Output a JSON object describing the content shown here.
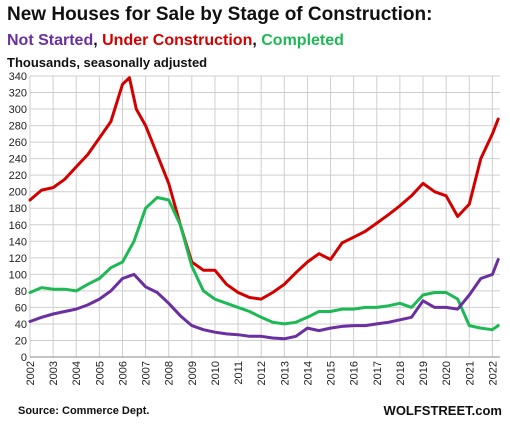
{
  "chart_data": {
    "type": "line",
    "title": "New Houses for Sale by Stage of Construction:",
    "legend_title": [
      {
        "text": "Not Started",
        "color": "#6a2fa0"
      },
      {
        "text": ", ",
        "color": "#111111"
      },
      {
        "text": "Under Construction",
        "color": "#d40000"
      },
      {
        "text": ", ",
        "color": "#111111"
      },
      {
        "text": "Completed",
        "color": "#1db954"
      }
    ],
    "units_label": "Thousands, seasonally adjusted",
    "ylim": [
      0,
      340
    ],
    "y_ticks": [
      0,
      20,
      40,
      60,
      80,
      100,
      120,
      140,
      160,
      180,
      200,
      220,
      240,
      260,
      280,
      300,
      320,
      340
    ],
    "xlim": [
      2002.0,
      2022.33
    ],
    "x_ticks": [
      "2002",
      "2003",
      "2004",
      "2005",
      "2006",
      "2007",
      "2008",
      "2009",
      "2010",
      "2011",
      "2012",
      "2013",
      "2014",
      "2015",
      "2016",
      "2017",
      "2018",
      "2019",
      "2020",
      "2021",
      "2022"
    ],
    "grid": true,
    "series": [
      {
        "name": "Under Construction",
        "color": "#d40000",
        "x": [
          2002.0,
          2002.5,
          2003.0,
          2003.5,
          2004.0,
          2004.5,
          2005.0,
          2005.5,
          2006.0,
          2006.3,
          2006.6,
          2007.0,
          2007.5,
          2008.0,
          2008.5,
          2009.0,
          2009.5,
          2010.0,
          2010.5,
          2011.0,
          2011.5,
          2012.0,
          2012.5,
          2013.0,
          2013.5,
          2014.0,
          2014.5,
          2015.0,
          2015.5,
          2016.0,
          2016.5,
          2017.0,
          2017.5,
          2018.0,
          2018.5,
          2019.0,
          2019.5,
          2020.0,
          2020.5,
          2021.0,
          2021.5,
          2022.0,
          2022.25
        ],
        "y": [
          190,
          202,
          205,
          215,
          230,
          245,
          265,
          285,
          330,
          338,
          300,
          280,
          245,
          210,
          160,
          115,
          105,
          105,
          88,
          78,
          72,
          70,
          78,
          88,
          102,
          115,
          125,
          118,
          138,
          145,
          152,
          162,
          172,
          183,
          195,
          210,
          200,
          195,
          170,
          185,
          240,
          270,
          288
        ]
      },
      {
        "name": "Completed",
        "color": "#1db954",
        "x": [
          2002.0,
          2002.5,
          2003.0,
          2003.5,
          2004.0,
          2004.5,
          2005.0,
          2005.5,
          2006.0,
          2006.5,
          2007.0,
          2007.5,
          2008.0,
          2008.5,
          2009.0,
          2009.5,
          2010.0,
          2010.5,
          2011.0,
          2011.5,
          2012.0,
          2012.5,
          2013.0,
          2013.5,
          2014.0,
          2014.5,
          2015.0,
          2015.5,
          2016.0,
          2016.5,
          2017.0,
          2017.5,
          2018.0,
          2018.5,
          2019.0,
          2019.5,
          2020.0,
          2020.5,
          2021.0,
          2021.5,
          2022.0,
          2022.25
        ],
        "y": [
          78,
          84,
          82,
          82,
          80,
          88,
          95,
          108,
          115,
          140,
          180,
          193,
          190,
          160,
          110,
          80,
          70,
          65,
          60,
          55,
          48,
          42,
          40,
          42,
          48,
          55,
          55,
          58,
          58,
          60,
          60,
          62,
          65,
          60,
          75,
          78,
          78,
          70,
          38,
          35,
          33,
          38
        ]
      },
      {
        "name": "Not Started",
        "color": "#6a2fa0",
        "x": [
          2002.0,
          2002.5,
          2003.0,
          2003.5,
          2004.0,
          2004.5,
          2005.0,
          2005.5,
          2006.0,
          2006.5,
          2007.0,
          2007.5,
          2008.0,
          2008.5,
          2009.0,
          2009.5,
          2010.0,
          2010.5,
          2011.0,
          2011.5,
          2012.0,
          2012.5,
          2013.0,
          2013.5,
          2014.0,
          2014.5,
          2015.0,
          2015.5,
          2016.0,
          2016.5,
          2017.0,
          2017.5,
          2018.0,
          2018.5,
          2019.0,
          2019.5,
          2020.0,
          2020.5,
          2021.0,
          2021.5,
          2022.0,
          2022.25
        ],
        "y": [
          43,
          48,
          52,
          55,
          58,
          63,
          70,
          80,
          95,
          100,
          85,
          78,
          65,
          50,
          38,
          33,
          30,
          28,
          27,
          25,
          25,
          23,
          22,
          25,
          35,
          32,
          35,
          37,
          38,
          38,
          40,
          42,
          45,
          48,
          68,
          60,
          60,
          58,
          75,
          95,
          100,
          118
        ]
      }
    ]
  },
  "footer": {
    "source": "Source:  Commerce Dept.",
    "brand": "WOLFSTREET.com"
  }
}
